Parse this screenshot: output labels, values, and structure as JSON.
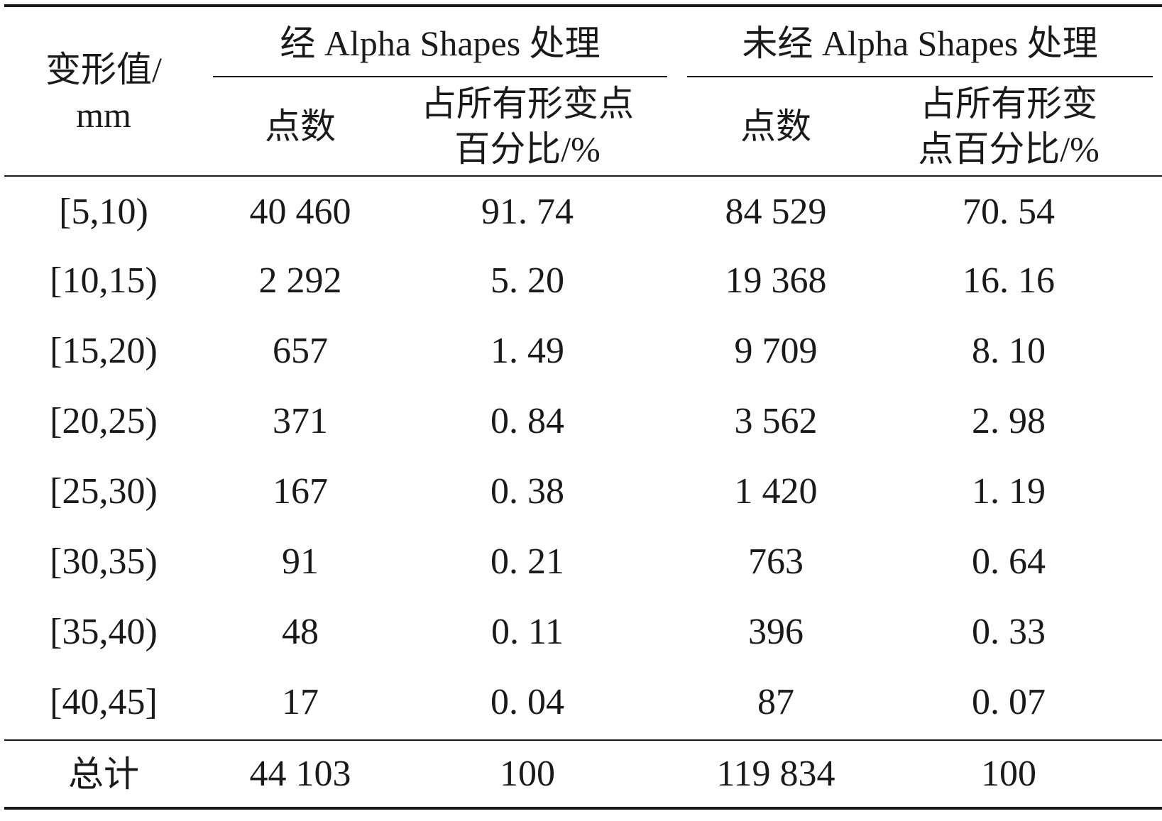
{
  "table": {
    "header": {
      "col0_line1": "变形值/",
      "col0_line2": "mm",
      "group1": "经 Alpha Shapes 处理",
      "group2": "未经 Alpha Shapes 处理",
      "g1_count": "点数",
      "g1_pct_line1": "占所有形变点",
      "g1_pct_line2": "百分比/%",
      "g2_count": "点数",
      "g2_pct_line1": "占所有形变",
      "g2_pct_line2": "点百分比/%"
    },
    "rows": [
      {
        "range": "[5,10)",
        "g1_count": "40 460",
        "g1_pct": "91. 74",
        "g2_count": "84 529",
        "g2_pct": "70. 54"
      },
      {
        "range": "[10,15)",
        "g1_count": "2 292",
        "g1_pct": "5. 20",
        "g2_count": "19 368",
        "g2_pct": "16. 16"
      },
      {
        "range": "[15,20)",
        "g1_count": "657",
        "g1_pct": "1. 49",
        "g2_count": "9 709",
        "g2_pct": "8. 10"
      },
      {
        "range": "[20,25)",
        "g1_count": "371",
        "g1_pct": "0. 84",
        "g2_count": "3 562",
        "g2_pct": "2. 98"
      },
      {
        "range": "[25,30)",
        "g1_count": "167",
        "g1_pct": "0. 38",
        "g2_count": "1 420",
        "g2_pct": "1. 19"
      },
      {
        "range": "[30,35)",
        "g1_count": "91",
        "g1_pct": "0. 21",
        "g2_count": "763",
        "g2_pct": "0. 64"
      },
      {
        "range": "[35,40)",
        "g1_count": "48",
        "g1_pct": "0. 11",
        "g2_count": "396",
        "g2_pct": "0. 33"
      },
      {
        "range": "[40,45]",
        "g1_count": "17",
        "g1_pct": "0. 04",
        "g2_count": "87",
        "g2_pct": "0. 07"
      }
    ],
    "total": {
      "label": "总计",
      "g1_count": "44 103",
      "g1_pct": "100",
      "g2_count": "119 834",
      "g2_pct": "100"
    }
  }
}
